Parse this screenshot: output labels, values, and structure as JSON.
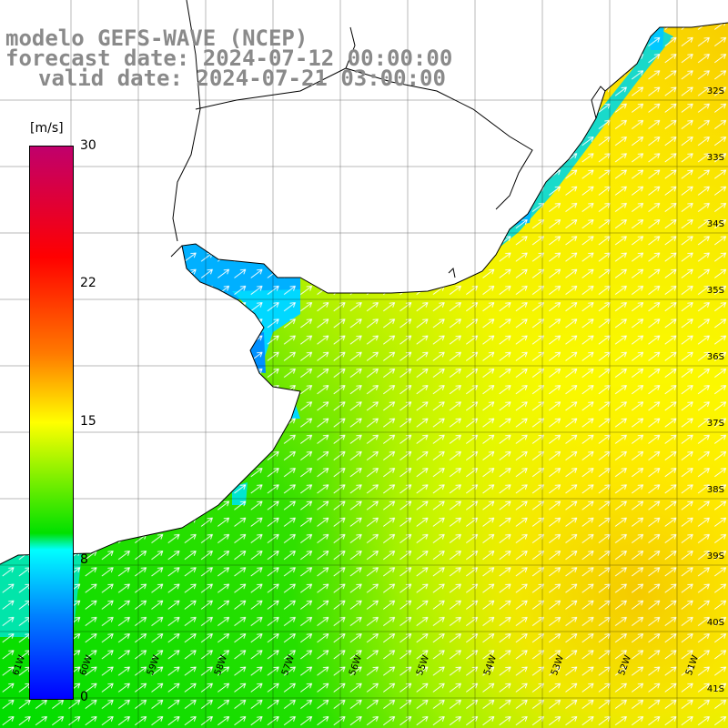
{
  "title": {
    "line1": "modelo GEFS-WAVE (NCEP)",
    "line2": "forecast date: 2024-07-12 00:00:00",
    "line3": "valid date: 2024-07-21 03:00:00"
  },
  "colorbar": {
    "unit": "[m/s]",
    "labels": [
      "30",
      "22",
      "15",
      "8",
      "0"
    ],
    "values": [
      30,
      22,
      15,
      8,
      0
    ],
    "colors": [
      "#c0006c",
      "#ff0000",
      "#ff7a00",
      "#ffff00",
      "#00e000",
      "#00ffff",
      "#0080ff",
      "#0000ff"
    ]
  },
  "latitude_labels": [
    "32S",
    "33S",
    "34S",
    "35S",
    "36S",
    "37S",
    "38S",
    "39S",
    "40S",
    "41S"
  ],
  "longitude_labels": [
    "61W",
    "60W",
    "59W",
    "58W",
    "57W",
    "56W",
    "55W",
    "54W",
    "53W",
    "52W",
    "51W"
  ],
  "field": {
    "variable": "wind speed",
    "arrow_direction": "toward northeast",
    "land_color": "#ffffff",
    "gridlines": true
  }
}
